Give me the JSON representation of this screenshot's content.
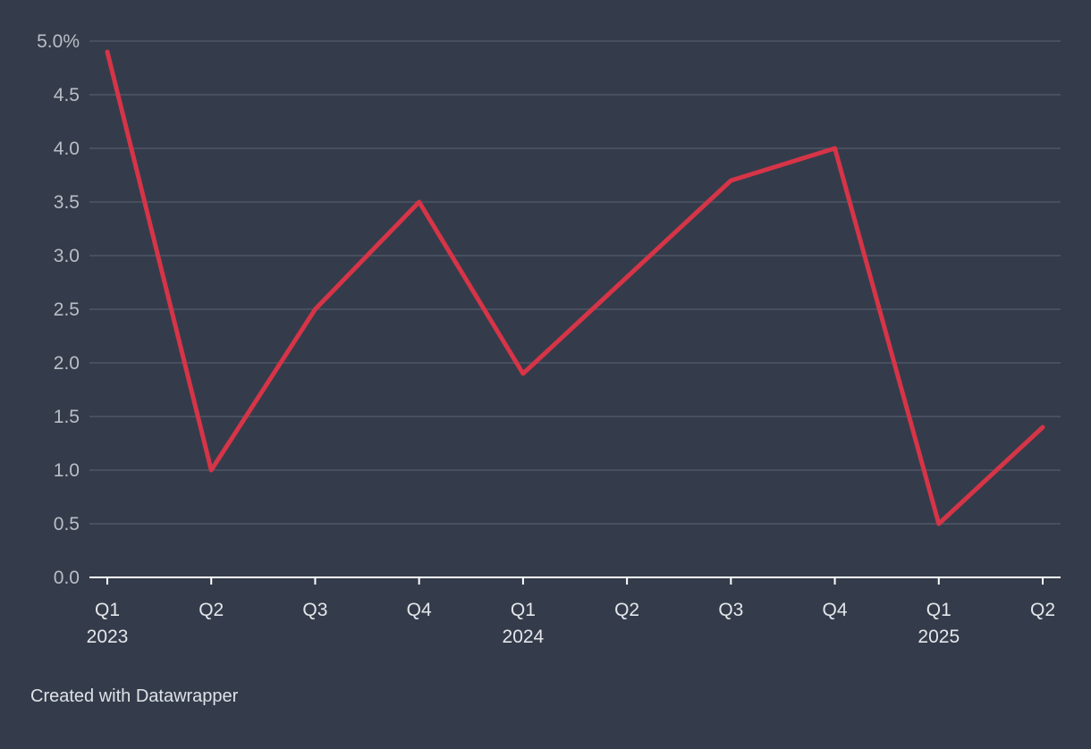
{
  "chart_data": {
    "type": "line",
    "categories": [
      "Q1",
      "Q2",
      "Q3",
      "Q4",
      "Q1",
      "Q2",
      "Q3",
      "Q4",
      "Q1",
      "Q2"
    ],
    "category_years": [
      "2023",
      "",
      "",
      "",
      "2024",
      "",
      "",
      "",
      "2025",
      ""
    ],
    "series": [
      {
        "color": "#d63447",
        "values": [
          4.9,
          1.0,
          2.5,
          3.5,
          1.9,
          2.8,
          3.7,
          4.0,
          0.5,
          1.4
        ]
      }
    ],
    "y_ticks": [
      "0.0",
      "0.5",
      "1.0",
      "1.5",
      "2.0",
      "2.5",
      "3.0",
      "3.5",
      "4.0",
      "4.5",
      "5.0%"
    ],
    "y_tick_values": [
      0,
      0.5,
      1.0,
      1.5,
      2.0,
      2.5,
      3.0,
      3.5,
      4.0,
      4.5,
      5.0
    ],
    "ylim": [
      0,
      5.0
    ],
    "grid": true,
    "legend": "none",
    "background": "#343c4b"
  },
  "footer": {
    "credit": "Created with Datawrapper"
  }
}
